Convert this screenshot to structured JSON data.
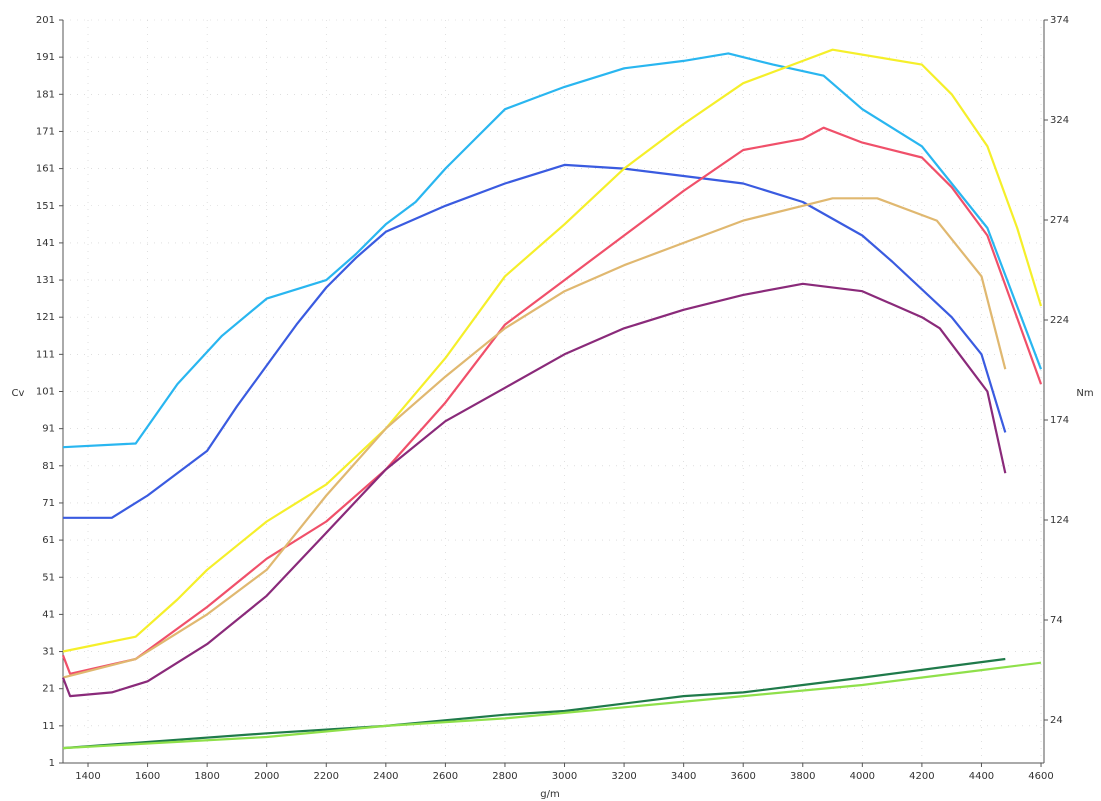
{
  "chart_data": {
    "type": "line",
    "y_label": "Cv",
    "y2_label": "Nm",
    "x_label": "g/m",
    "grid": true,
    "xlim": [
      1316,
      4610
    ],
    "xticks": [
      1400,
      1600,
      1800,
      2000,
      2200,
      2400,
      2600,
      2800,
      3000,
      3200,
      3400,
      3600,
      3800,
      4000,
      4200,
      4400,
      4600
    ],
    "ylim": [
      1,
      201
    ],
    "yticks": [
      1,
      11,
      21,
      31,
      41,
      51,
      61,
      71,
      81,
      91,
      101,
      111,
      121,
      131,
      141,
      151,
      161,
      171,
      181,
      191,
      201
    ],
    "y2lim": [
      2.5,
      374
    ],
    "y2ticks": [
      24,
      74,
      124,
      174,
      224,
      274,
      324,
      374
    ],
    "series": [
      {
        "color": "#29b6f0",
        "x": [
          1316,
          1560,
          1700,
          1850,
          2000,
          2200,
          2300,
          2400,
          2500,
          2600,
          2700,
          2800,
          2900,
          3000,
          3200,
          3400,
          3550,
          3700,
          3870,
          4000,
          4200,
          4300,
          4420,
          4600
        ],
        "values": [
          86,
          87,
          103,
          116,
          126,
          131,
          138,
          146,
          152,
          161,
          169,
          177,
          180,
          183,
          188,
          190,
          192,
          189,
          186,
          177,
          167,
          157,
          145,
          107
        ]
      },
      {
        "color": "#3a5be0",
        "x": [
          1316,
          1480,
          1600,
          1800,
          1900,
          2000,
          2100,
          2200,
          2300,
          2400,
          2600,
          2800,
          3000,
          3200,
          3400,
          3600,
          3800,
          4000,
          4100,
          4300,
          4400,
          4480
        ],
        "values": [
          67,
          67,
          73,
          85,
          97,
          108,
          119,
          129,
          137,
          144,
          151,
          157,
          162,
          161,
          159,
          157,
          152,
          143,
          136,
          121,
          111,
          90
        ]
      },
      {
        "color": "#f5ef2a",
        "x": [
          1316,
          1560,
          1700,
          1800,
          2000,
          2200,
          2400,
          2600,
          2800,
          3000,
          3200,
          3400,
          3600,
          3800,
          3900,
          4200,
          4300,
          4420,
          4520,
          4600
        ],
        "values": [
          31,
          35,
          45,
          53,
          66,
          76,
          91,
          110,
          132,
          146,
          161,
          173,
          184,
          190,
          193,
          189,
          181,
          167,
          145,
          124
        ]
      },
      {
        "color": "#f0506a",
        "x": [
          1316,
          1340,
          1560,
          1800,
          2000,
          2200,
          2400,
          2600,
          2800,
          3000,
          3200,
          3400,
          3600,
          3800,
          3870,
          4000,
          4200,
          4300,
          4420,
          4600
        ],
        "values": [
          30,
          25,
          29,
          43,
          56,
          66,
          80,
          98,
          119,
          131,
          143,
          155,
          166,
          169,
          172,
          168,
          164,
          156,
          143,
          103
        ]
      },
      {
        "color": "#e0b870",
        "x": [
          1316,
          1560,
          1800,
          2000,
          2200,
          2400,
          2600,
          2800,
          3000,
          3200,
          3400,
          3600,
          3800,
          3900,
          4050,
          4250,
          4400,
          4480
        ],
        "values": [
          24,
          29,
          41,
          53,
          73,
          91,
          105,
          118,
          128,
          135,
          141,
          147,
          151,
          153,
          153,
          147,
          132,
          107
        ]
      },
      {
        "color": "#8a2a7a",
        "x": [
          1316,
          1340,
          1480,
          1600,
          1800,
          2000,
          2200,
          2400,
          2600,
          2800,
          3000,
          3200,
          3400,
          3600,
          3800,
          4000,
          4200,
          4260,
          4420,
          4480
        ],
        "values": [
          24,
          19,
          20,
          23,
          33,
          46,
          63,
          80,
          93,
          102,
          111,
          118,
          123,
          127,
          130,
          128,
          121,
          118,
          101,
          79
        ]
      },
      {
        "color": "#1f7a4a",
        "x": [
          1316,
          2000,
          2400,
          2800,
          3000,
          3400,
          3600,
          3800,
          4000,
          4480
        ],
        "values": [
          5,
          9,
          11,
          14,
          15,
          19,
          20,
          22,
          24,
          29
        ]
      },
      {
        "color": "#8fe04a",
        "x": [
          1316,
          2000,
          2400,
          2800,
          3200,
          3600,
          4000,
          4400,
          4600
        ],
        "values": [
          5,
          8,
          11,
          13,
          16,
          19,
          22,
          26,
          28
        ]
      }
    ]
  }
}
